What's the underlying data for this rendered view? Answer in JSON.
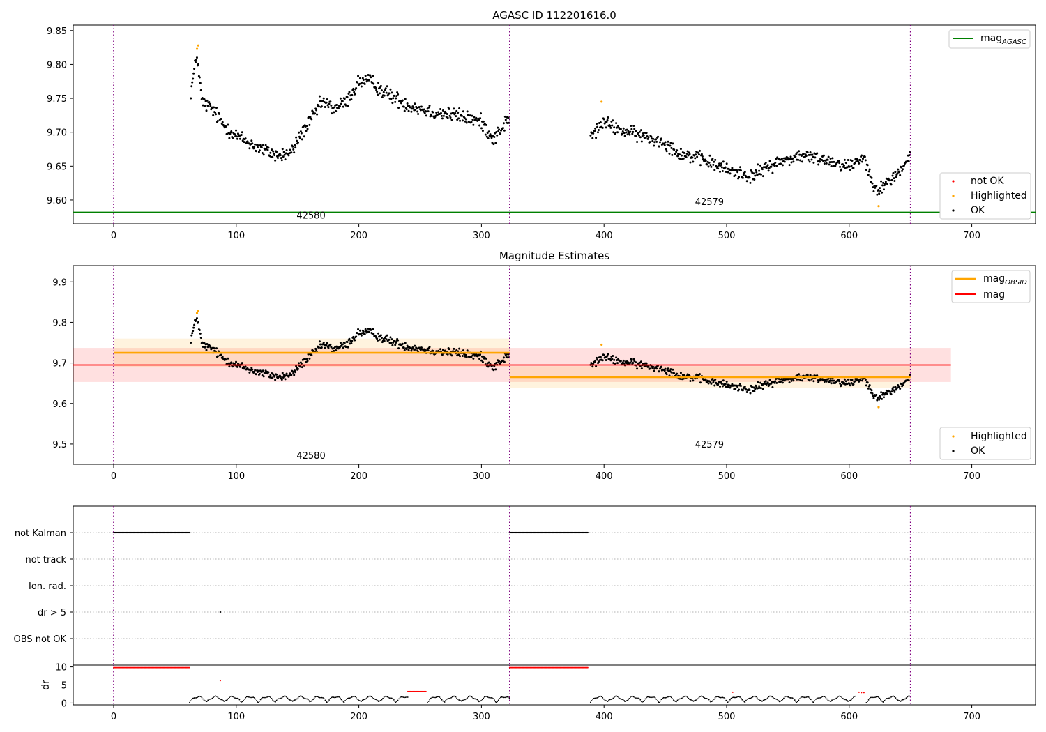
{
  "colors": {
    "ok": "#000000",
    "not_ok": "#ff0000",
    "highlighted": "#ffa500",
    "mag_agasc": "#008000",
    "mag_obsid": "#ffa500",
    "mag": "#ff0000",
    "obs_boundary": "#800080"
  },
  "chart_data": [
    {
      "id": "top",
      "type": "scatter",
      "title": "AGASC ID 112201616.0",
      "xlim": [
        -33,
        752
      ],
      "ylim": [
        9.565,
        9.858
      ],
      "xticks": [
        0,
        100,
        200,
        300,
        400,
        500,
        600,
        700
      ],
      "yticks": [
        9.6,
        9.65,
        9.7,
        9.75,
        9.8,
        9.85
      ],
      "obs_boundaries": [
        0,
        323,
        650
      ],
      "obs_labels": [
        {
          "text": "42580",
          "x": 161,
          "y": 9.578
        },
        {
          "text": "42579",
          "x": 486,
          "y": 9.598
        }
      ],
      "lines": [
        {
          "name": "mag_AGASC",
          "y": 9.582,
          "color": "#008000"
        }
      ],
      "legend_upper": [
        {
          "label": "mag",
          "sub": "AGASC",
          "kind": "line",
          "color": "#008000"
        }
      ],
      "legend_lower": [
        {
          "label": "not OK",
          "kind": "dot",
          "color": "#ff0000"
        },
        {
          "label": "Highlighted",
          "kind": "dot",
          "color": "#ffa500"
        },
        {
          "label": "OK",
          "kind": "dot",
          "color": "#000000"
        }
      ],
      "highlighted_points": [
        [
          68,
          9.823
        ],
        [
          69,
          9.828
        ],
        [
          398,
          9.745
        ],
        [
          624,
          9.591
        ]
      ]
    },
    {
      "id": "mid",
      "type": "scatter",
      "title": "Magnitude Estimates",
      "xlim": [
        -33,
        752
      ],
      "ylim": [
        9.45,
        9.94
      ],
      "xticks": [
        0,
        100,
        200,
        300,
        400,
        500,
        600,
        700
      ],
      "yticks": [
        9.5,
        9.6,
        9.7,
        9.8,
        9.9
      ],
      "obs_boundaries": [
        0,
        323,
        650
      ],
      "obs_labels": [
        {
          "text": "42580",
          "x": 161,
          "y": 9.472
        },
        {
          "text": "42579",
          "x": 486,
          "y": 9.5
        }
      ],
      "mag": {
        "value": 9.695,
        "band": [
          9.653,
          9.737
        ],
        "x_range": [
          -33,
          683
        ]
      },
      "mag_obsid": [
        {
          "obsid": "42580",
          "x_range": [
            0,
            323
          ],
          "value": 9.725,
          "band": [
            9.69,
            9.76
          ]
        },
        {
          "obsid": "42579",
          "x_range": [
            323,
            650
          ],
          "value": 9.665,
          "band": [
            9.638,
            9.692
          ]
        }
      ],
      "legend_upper": [
        {
          "label": "mag",
          "sub": "OBSID",
          "kind": "line",
          "color": "#ffa500"
        },
        {
          "label": "mag",
          "kind": "line",
          "color": "#ff0000"
        }
      ],
      "legend_lower": [
        {
          "label": "Highlighted",
          "kind": "dot",
          "color": "#ffa500"
        },
        {
          "label": "OK",
          "kind": "dot",
          "color": "#000000"
        }
      ],
      "highlighted_points": [
        [
          68,
          9.823
        ],
        [
          69,
          9.828
        ],
        [
          398,
          9.745
        ],
        [
          624,
          9.591
        ]
      ]
    },
    {
      "id": "flags",
      "type": "scatter",
      "xlim": [
        -33,
        752
      ],
      "categories": [
        "not Kalman",
        "not track",
        "Ion. rad.",
        "dr > 5",
        "OBS not OK"
      ],
      "obs_boundaries": [
        0,
        323,
        650
      ],
      "flag_runs": [
        {
          "category": "not Kalman",
          "x_range": [
            0,
            62
          ]
        },
        {
          "category": "not Kalman",
          "x_range": [
            323,
            387
          ]
        }
      ],
      "flag_points": [
        {
          "category": "dr > 5",
          "x": 87
        }
      ]
    },
    {
      "id": "dr",
      "type": "scatter",
      "xlim": [
        -33,
        752
      ],
      "ylim": [
        -0.5,
        10.5
      ],
      "xticks": [
        0,
        100,
        200,
        300,
        400,
        500,
        600,
        700
      ],
      "yticks": [
        0,
        5,
        10
      ],
      "ylabel": "dr",
      "obs_boundaries": [
        0,
        323,
        650
      ],
      "red_runs": [
        {
          "x_range": [
            0,
            62
          ],
          "y": 9.8
        },
        {
          "x_range": [
            323,
            387
          ],
          "y": 9.8
        },
        {
          "x_range": [
            240,
            255
          ],
          "y": 3.2
        }
      ],
      "red_points": [
        [
          87,
          6.2
        ],
        [
          505,
          3.0
        ],
        [
          608,
          3.0
        ],
        [
          610,
          2.9
        ],
        [
          612,
          2.9
        ]
      ]
    }
  ]
}
